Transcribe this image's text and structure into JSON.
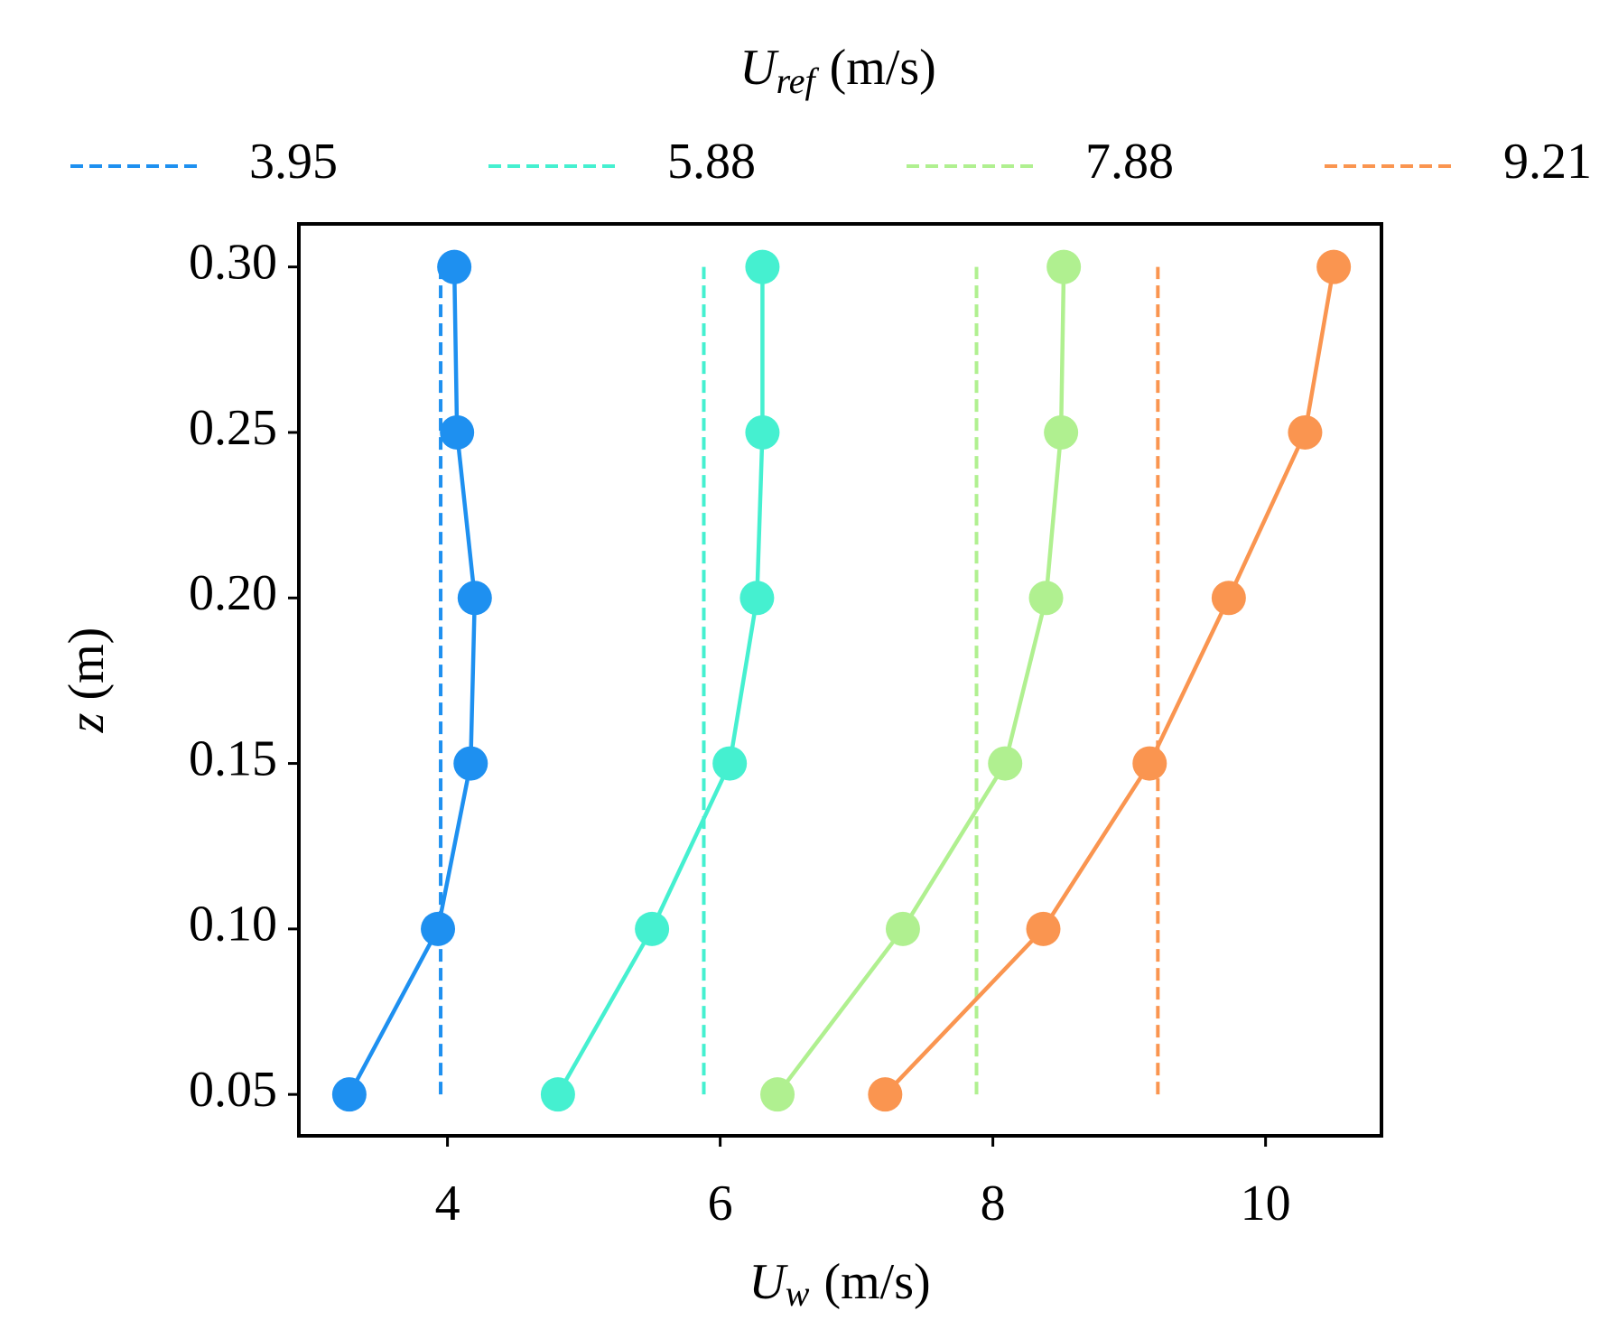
{
  "chart_data": {
    "type": "line",
    "legend_title": {
      "symbol": "U",
      "subscript": "ref",
      "unit": "(m/s)"
    },
    "xlabel": {
      "symbol": "U",
      "subscript": "w",
      "unit": "(m/s)"
    },
    "ylabel": {
      "symbol": "z",
      "unit": "(m)"
    },
    "y": [
      0.05,
      0.1,
      0.15,
      0.2,
      0.25,
      0.3
    ],
    "series": [
      {
        "ref": 3.95,
        "color": "#1e90f0",
        "values": [
          3.28,
          3.93,
          4.17,
          4.2,
          4.07,
          4.05
        ]
      },
      {
        "ref": 5.88,
        "color": "#45f0d0",
        "values": [
          4.81,
          5.5,
          6.07,
          6.27,
          6.31,
          6.31
        ]
      },
      {
        "ref": 7.88,
        "color": "#b0f090",
        "values": [
          6.42,
          7.34,
          8.09,
          8.39,
          8.5,
          8.52
        ]
      },
      {
        "ref": 9.21,
        "color": "#fa9550",
        "values": [
          7.21,
          8.37,
          9.15,
          9.73,
          10.29,
          10.5
        ]
      }
    ],
    "xlim": [
      2.91,
      10.85
    ],
    "ylim": [
      0.0375,
      0.313
    ],
    "xticks": [
      4,
      6,
      8,
      10
    ],
    "yticks": [
      {
        "value": 0.05,
        "label": "0.05"
      },
      {
        "value": 0.1,
        "label": "0.10"
      },
      {
        "value": 0.15,
        "label": "0.15"
      },
      {
        "value": 0.2,
        "label": "0.20"
      },
      {
        "value": 0.25,
        "label": "0.25"
      },
      {
        "value": 0.3,
        "label": "0.30"
      }
    ]
  }
}
